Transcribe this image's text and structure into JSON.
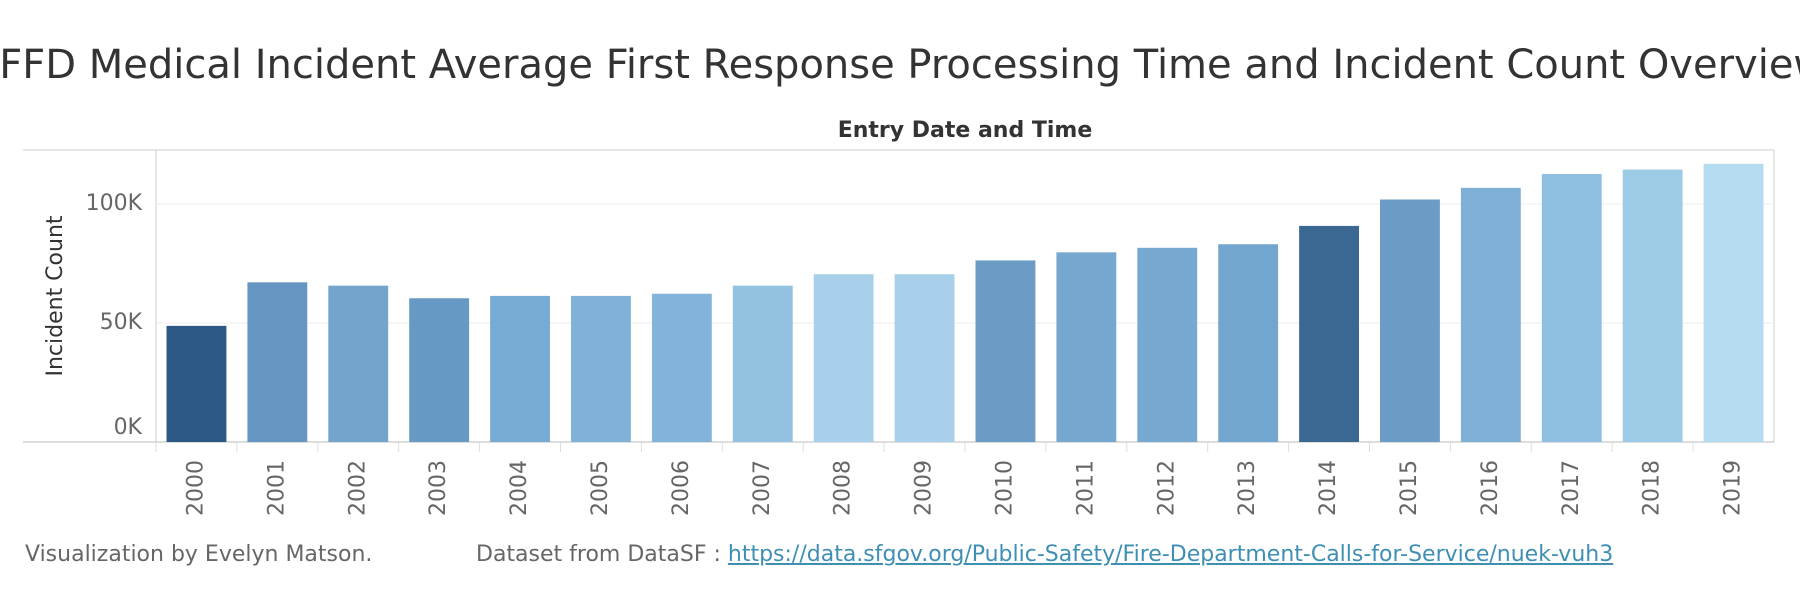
{
  "chart_data": {
    "type": "bar",
    "title": "SFFD Medical Incident Average First Response Processing Time and Incident Count Overview",
    "x_label": "Entry Date and Time",
    "y_label": "Incident Count",
    "categories": [
      "2000",
      "2001",
      "2002",
      "2003",
      "2004",
      "2005",
      "2006",
      "2007",
      "2008",
      "2009",
      "2010",
      "2011",
      "2012",
      "2013",
      "2014",
      "2015",
      "2016",
      "2017",
      "2018",
      "2019"
    ],
    "values": [
      48800,
      67100,
      65700,
      60400,
      61400,
      61400,
      62300,
      65700,
      70500,
      70500,
      76300,
      79700,
      81600,
      83100,
      90800,
      101900,
      106800,
      112600,
      114500,
      116900
    ],
    "colors": [
      "#2c5886",
      "#6596c2",
      "#72a4cc",
      "#6699c4",
      "#78abd3",
      "#80b2d8",
      "#82b4d9",
      "#93c1e2",
      "#a8d0ea",
      "#a8d0ea",
      "#6a9cc6",
      "#76a8cf",
      "#77a9d0",
      "#73a6ce",
      "#3a6893",
      "#6a9cc6",
      "#7eb0d6",
      "#8fbfe0",
      "#9ecbe6",
      "#b4dbef"
    ],
    "ylim": [
      0,
      122700
    ],
    "yticks": [
      {
        "value": 0,
        "label": "0K"
      },
      {
        "value": 50000,
        "label": "50K"
      },
      {
        "value": 100000,
        "label": "100K"
      }
    ],
    "grid": true
  },
  "footer": {
    "credit": "Visualization by Evelyn Matson.",
    "source_prefix": "Dataset from DataSF :",
    "source_link": "https://data.sfgov.org/Public-Safety/Fire-Department-Calls-for-Service/nuek-vuh3"
  }
}
